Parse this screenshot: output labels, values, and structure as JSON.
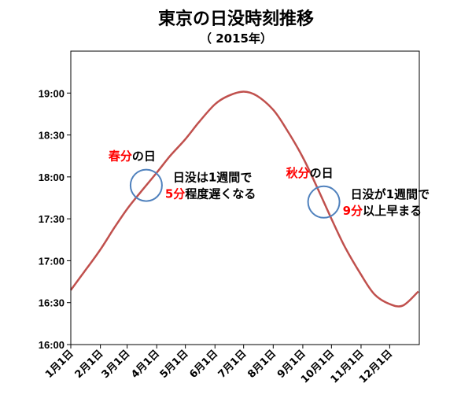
{
  "chart_data": {
    "type": "line",
    "title": "東京の日没時刻推移",
    "subtitle": "（ 2015年）",
    "xlabel": "",
    "ylabel": "",
    "ylim_minutes": [
      960,
      1170
    ],
    "y_ticks": [
      "16:00",
      "16:30",
      "17:00",
      "17:30",
      "18:00",
      "18:30",
      "19:00"
    ],
    "x_ticks": [
      "1月1日",
      "2月1日",
      "3月1日",
      "4月1日",
      "5月1日",
      "6月1日",
      "7月1日",
      "8月1日",
      "9月1日",
      "10月1日",
      "11月1日",
      "12月1日"
    ],
    "grid": false,
    "line_color": "#c0504d",
    "series": [
      {
        "x": [
          "1月1日",
          "1月15日",
          "2月1日",
          "2月15日",
          "3月1日",
          "3月15日",
          "4月1日",
          "4月15日",
          "5月1日",
          "5月15日",
          "6月1日",
          "6月15日",
          "7月1日",
          "7月15日",
          "8月1日",
          "8月15日",
          "9月1日",
          "9月15日",
          "10月1日",
          "10月15日",
          "11月1日",
          "11月15日",
          "12月1日",
          "12月15日",
          "12月31日"
        ],
        "y": [
          "16:39",
          "16:52",
          "17:08",
          "17:23",
          "17:37",
          "17:49",
          "18:03",
          "18:15",
          "18:27",
          "18:39",
          "18:52",
          "18:58",
          "19:01",
          "18:58",
          "18:48",
          "18:34",
          "18:14",
          "17:54",
          "17:30",
          "17:10",
          "16:50",
          "16:36",
          "16:29",
          "16:28",
          "16:38"
        ]
      }
    ],
    "annotations": [
      {
        "marker": "春分",
        "marker_suffix": "の日",
        "text1": "日没は1週間で",
        "highlight2": "5分",
        "text2": "程度遅くなる",
        "at": "3月21日"
      },
      {
        "marker": "秋分",
        "marker_suffix": "の日",
        "text1": "日没が1週間で",
        "highlight2": "9分",
        "text2": "以上早まる",
        "at": "9月23日"
      }
    ],
    "highlight_color": "#ff0000",
    "circle_color": "#4f81bd"
  }
}
